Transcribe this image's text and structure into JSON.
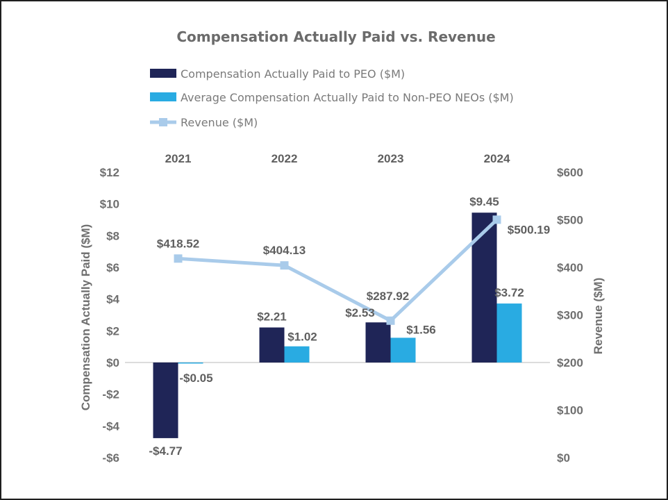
{
  "chart_data": {
    "type": "bar",
    "title": "Compensation Actually Paid vs. Revenue",
    "categories": [
      "2021",
      "2022",
      "2023",
      "2024"
    ],
    "series": [
      {
        "name": "Compensation Actually Paid to PEO ($M)",
        "type": "bar",
        "axis": "left",
        "color": "#1f2557",
        "values": [
          -4.77,
          2.21,
          2.53,
          9.45
        ],
        "labels": [
          "-$4.77",
          "$2.21",
          "$2.53",
          "$9.45"
        ]
      },
      {
        "name": "Average Compensation Actually Paid to Non-PEO NEOs ($M)",
        "type": "bar",
        "axis": "left",
        "color": "#29abe2",
        "values": [
          -0.05,
          1.02,
          1.56,
          3.72
        ],
        "labels": [
          "-$0.05",
          "$1.02",
          "$1.56",
          "$3.72"
        ]
      },
      {
        "name": "Revenue ($M)",
        "type": "line",
        "axis": "right",
        "color": "#a9cbea",
        "values": [
          418.52,
          404.13,
          287.92,
          500.19
        ],
        "labels": [
          "$418.52",
          "$404.13",
          "$287.92",
          "$500.19"
        ]
      }
    ],
    "ylabel": "Compensation Actually Paid ($M)",
    "ylim": [
      -6,
      12
    ],
    "yticks": [
      12,
      10,
      8,
      6,
      4,
      2,
      0,
      -2,
      -4,
      -6
    ],
    "ytick_labels": [
      "$12",
      "$10",
      "$8",
      "$6",
      "$4",
      "$2",
      "$0",
      "-$2",
      "-$4",
      "-$6"
    ],
    "y2label": "Revenue ($M)",
    "y2lim": [
      0,
      600
    ],
    "y2ticks": [
      600,
      500,
      400,
      300,
      200,
      100,
      0
    ],
    "y2tick_labels": [
      "$600",
      "$500",
      "$400",
      "$300",
      "$200",
      "$100",
      "$0"
    ],
    "legend_position": "top-left",
    "category_labels_position": "top",
    "grid": false
  }
}
